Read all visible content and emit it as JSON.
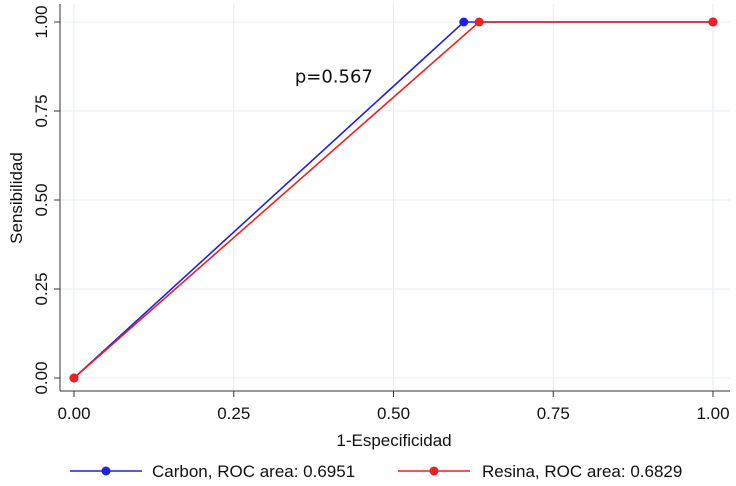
{
  "chart_data": {
    "type": "line",
    "xlabel": "1-Especificidad",
    "ylabel": "Sensibilidad",
    "xlim": [
      0,
      1
    ],
    "ylim": [
      0,
      1
    ],
    "xticks": [
      "0.00",
      "0.25",
      "0.50",
      "0.75",
      "1.00"
    ],
    "yticks": [
      "0.00",
      "0.25",
      "0.50",
      "0.75",
      "1.00"
    ],
    "tick_values": [
      0,
      0.25,
      0.5,
      0.75,
      1
    ],
    "grid": true,
    "legend_position": "bottom",
    "annotation": {
      "text": "p=0.567",
      "x": 0.38,
      "y": 0.83
    },
    "series": [
      {
        "name": "Carbon, ROC area: 0.6951",
        "color": "#1f1fe6",
        "x": [
          0,
          0.61,
          1
        ],
        "y": [
          0,
          1,
          1
        ]
      },
      {
        "name": "Resina, ROC area: 0.6829",
        "color": "#ee1f1f",
        "x": [
          0,
          0.634,
          1
        ],
        "y": [
          0,
          1,
          1
        ]
      }
    ]
  }
}
